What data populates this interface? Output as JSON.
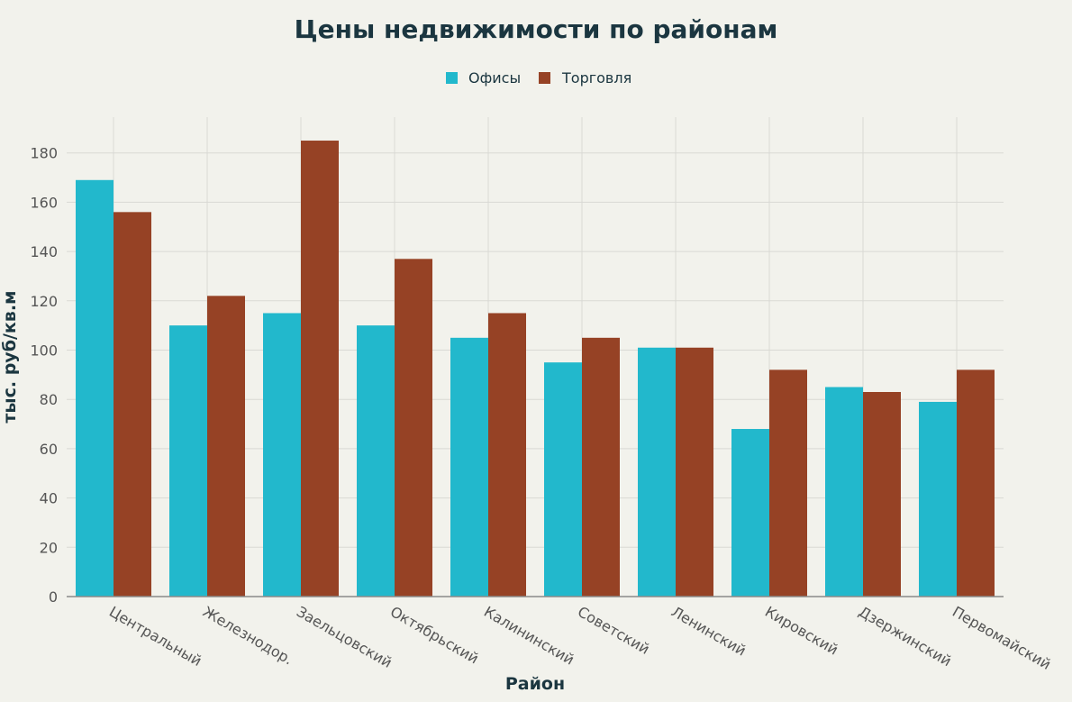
{
  "chart_data": {
    "type": "bar",
    "title": "Цены недвижимости по районам",
    "xlabel": "Район",
    "ylabel": "тыс. руб/кв.м",
    "categories": [
      "Центральный",
      "Железнодор.",
      "Заельцовский",
      "Октябрьский",
      "Калининский",
      "Советский",
      "Ленинский",
      "Кировский",
      "Дзержинский",
      "Первомайский"
    ],
    "series": [
      {
        "name": "Офисы",
        "color": "#22b8cc",
        "values": [
          169,
          110,
          115,
          110,
          105,
          95,
          101,
          68,
          85,
          79
        ]
      },
      {
        "name": "Торговля",
        "color": "#964225",
        "values": [
          156,
          122,
          185,
          137,
          115,
          105,
          101,
          92,
          83,
          92
        ]
      }
    ],
    "ylim": [
      0,
      190
    ],
    "yticks": [
      0,
      20,
      40,
      60,
      80,
      100,
      120,
      140,
      160,
      180
    ],
    "grid": true,
    "legend": "top-center"
  }
}
